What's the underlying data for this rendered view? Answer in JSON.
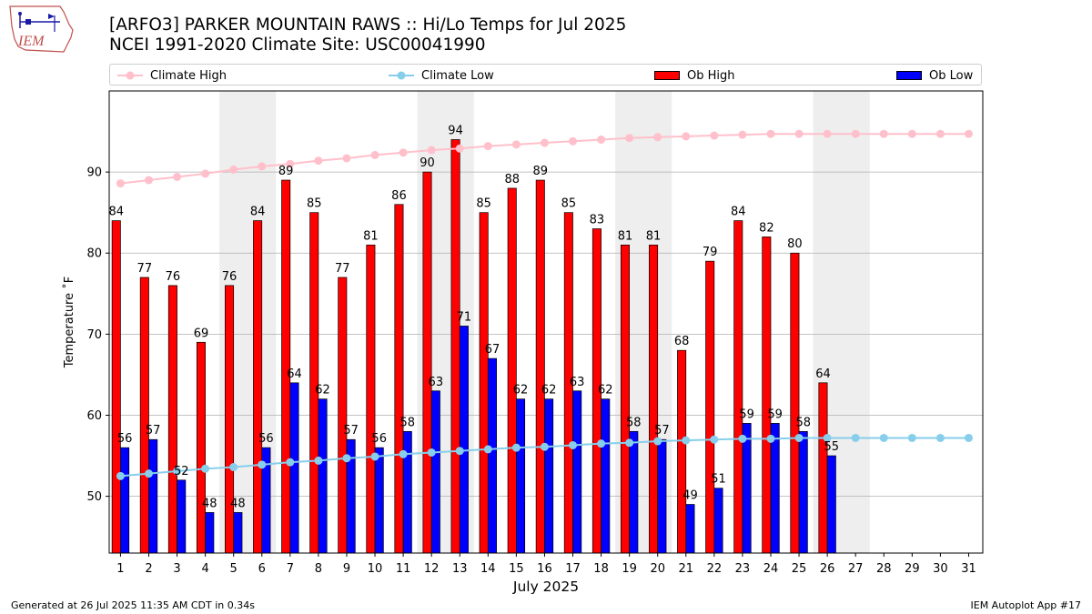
{
  "header": {
    "title_line1": "[ARFO3] PARKER MOUNTAIN RAWS :: Hi/Lo Temps for Jul 2025",
    "title_line2": "NCEI 1991-2020 Climate Site: USC00041990",
    "logo_text": "IEM"
  },
  "legend": {
    "climate_high": "Climate High",
    "climate_low": "Climate Low",
    "ob_high": "Ob High",
    "ob_low": "Ob Low"
  },
  "footer": {
    "generated": "Generated at 26 Jul 2025 11:35 AM CDT in 0.34s",
    "app": "IEM Autoplot App #17"
  },
  "colors": {
    "ob_high": "#ff0000",
    "ob_low": "#0000ff",
    "climate_high": "#ffc0cb",
    "climate_low": "#87ceeb",
    "weekend_shade": "#eeeeee",
    "grid": "#b0b0b0"
  },
  "chart_data": {
    "type": "bar",
    "xlabel": "July 2025",
    "ylabel": "Temperature ˚F",
    "ylim": [
      43,
      100
    ],
    "xlim": [
      0.6,
      31.5
    ],
    "yticks": [
      50,
      60,
      70,
      80,
      90
    ],
    "grid": "horizontal",
    "legend_position": "top",
    "categories": [
      1,
      2,
      3,
      4,
      5,
      6,
      7,
      8,
      9,
      10,
      11,
      12,
      13,
      14,
      15,
      16,
      17,
      18,
      19,
      20,
      21,
      22,
      23,
      24,
      25,
      26,
      27,
      28,
      29,
      30,
      31
    ],
    "shaded_weekends": [
      [
        5,
        6
      ],
      [
        12,
        13
      ],
      [
        19,
        20
      ],
      [
        26,
        27
      ]
    ],
    "series": [
      {
        "name": "Ob High",
        "kind": "bar",
        "values": [
          84,
          77,
          76,
          69,
          76,
          84,
          89,
          85,
          77,
          81,
          86,
          90,
          94,
          85,
          88,
          89,
          85,
          83,
          81,
          81,
          68,
          79,
          84,
          82,
          80,
          64,
          null,
          null,
          null,
          null,
          null
        ]
      },
      {
        "name": "Ob Low",
        "kind": "bar",
        "values": [
          56,
          57,
          52,
          48,
          48,
          56,
          64,
          62,
          57,
          56,
          58,
          63,
          71,
          67,
          62,
          62,
          63,
          62,
          58,
          57,
          49,
          51,
          59,
          59,
          58,
          55,
          null,
          null,
          null,
          null,
          null
        ]
      },
      {
        "name": "Climate High",
        "kind": "line",
        "values": [
          88.6,
          89.0,
          89.4,
          89.8,
          90.3,
          90.7,
          91.0,
          91.4,
          91.7,
          92.1,
          92.4,
          92.7,
          92.9,
          93.2,
          93.4,
          93.6,
          93.8,
          94.0,
          94.2,
          94.3,
          94.4,
          94.5,
          94.6,
          94.7,
          94.7,
          94.7,
          94.7,
          94.7,
          94.7,
          94.7,
          94.7
        ]
      },
      {
        "name": "Climate Low",
        "kind": "line",
        "values": [
          52.5,
          52.8,
          53.1,
          53.4,
          53.6,
          53.9,
          54.2,
          54.4,
          54.7,
          54.9,
          55.2,
          55.4,
          55.6,
          55.8,
          56.0,
          56.1,
          56.3,
          56.5,
          56.6,
          56.8,
          56.9,
          57.0,
          57.1,
          57.1,
          57.2,
          57.2,
          57.2,
          57.2,
          57.2,
          57.2,
          57.2
        ]
      }
    ]
  }
}
